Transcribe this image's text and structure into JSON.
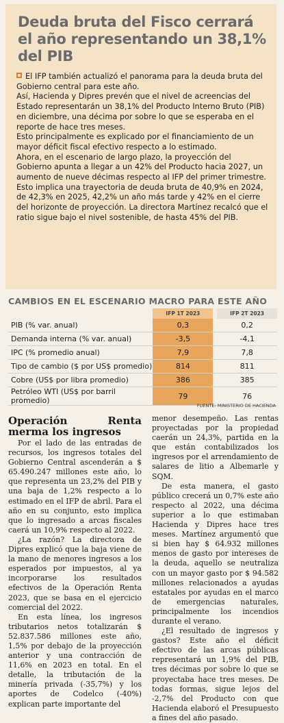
{
  "box": {
    "title": "Deuda bruta del Fisco cerrará el año representando un 38,1% del PIB",
    "paragraphs": [
      "El IFP también actualizó el panorama para la deuda bruta del Gobierno central para este año.",
      "Así, Hacienda y Dipres prevén que el nivel de acreencias del Estado representarán un 38,1% del Producto Interno Bruto (PIB) en diciembre, una décima por sobre lo que se esperaba en el reporte de hace tres meses.",
      "Esto principalmente es explicado por el financiamiento de un mayor déficit fiscal efectivo respecto a lo estimado.",
      "Ahora, en el escenario de largo plazo, la proyección del Gobierno apunta a llegar a un 42% del Producto hacia 2027, un aumento de nueve décimas respecto al IFP del primer trimestre.",
      "Esto implica una trayectoria de deuda bruta de 40,9% en 2024, de 42,3% en 2025, 42,2% un año más tarde y 42% en el cierre del horizonte de proyección. La directora Martínez recalcó que el ratio sigue bajo el nivel sostenible, de hasta 45% del PIB."
    ]
  },
  "table": {
    "title": "CAMBIOS EN EL ESCENARIO MACRO PARA ESTE AÑO",
    "col1_header": "IFP 1T 2023",
    "col2_header": "IFP 2T 2023",
    "rows": [
      {
        "label": "PIB (% var. anual)",
        "v1": "0,3",
        "v2": "0,2"
      },
      {
        "label": "Demanda interna (% var. anual)",
        "v1": "-3,5",
        "v2": "-4,1"
      },
      {
        "label": "IPC (% promedio anual)",
        "v1": "7,9",
        "v2": "7,8"
      },
      {
        "label": "Tipo de cambio ($ por US$ promedio)",
        "v1": "814",
        "v2": "811"
      },
      {
        "label": "Cobre (US$ por libra promedio)",
        "v1": "386",
        "v2": "385"
      },
      {
        "label": "Petróleo WTI (US$ por barril promedio)",
        "v1": "79",
        "v2": "76"
      }
    ],
    "source": "FUENTE: MINISTERIO DE HACIENDA"
  },
  "article": {
    "subhead": "Operación Renta merma los ingresos",
    "left_paragraphs": [
      "Por el lado de las entradas de recursos, los ingresos totales del Gobierno Central ascenderán a $ 65.490.247 millones este año, lo que representa un 23,2% del PIB y una baja de 1,2% respecto a lo estimado en el IFP de abril. Para el año en su conjunto, esto implica que lo ingresado a arcas fiscales caerá un 10,9% respecto al 2022.",
      "¿La razón? La directora de Dipres explicó que la baja viene de la mano de menores ingresos a los esperados por impuestos, al ya incorporarse los resultados efectivos de la Operación Renta 2023, que se basa en el ejercicio comercial del 2022.",
      "En esta línea, los ingresos tributarios netos totalizarán $ 52.837.586 millones este año, 1,5% por debajo de la proyección anterior y una contracción de 11,6% en 2023 en total. En el detalle, la tributación de la minería privada (-35,7%) y los aportes de Codelco (-40%) explican parte importante del"
    ],
    "right_paragraphs": [
      "menor desempeño. Las rentas proyectadas por la propiedad caerán un 24,3%, partida en la que están contabilizados los ingresos por el arrendamiento de salares de litio a Albemarle y SQM.",
      "De esta manera, el gasto público crecerá un 0,7% este año respecto al 2022, una décima superior a lo que estimaban Hacienda y Dipres hace tres meses. Martínez argumentó que si bien hay $ 64.932 millones menos de gasto por intereses de la deuda, aquello se neutraliza con un mayor gasto por $ 94.582 millones relacionados a ayudas estatales por ayudas en el marco de emergencias naturales, principalmente los incendios durante el verano.",
      "¿El resultado de ingresos y gastos? Este año el déficit efectivo de las arcas públicas representará un 1,9% del PIB, tres décimas por sobre lo que se proyectaba hace tres meses. De todas formas, sigue lejos del -2,7% del Producto con que Hacienda elaboró el Presupuesto a fines del año pasado."
    ]
  }
}
